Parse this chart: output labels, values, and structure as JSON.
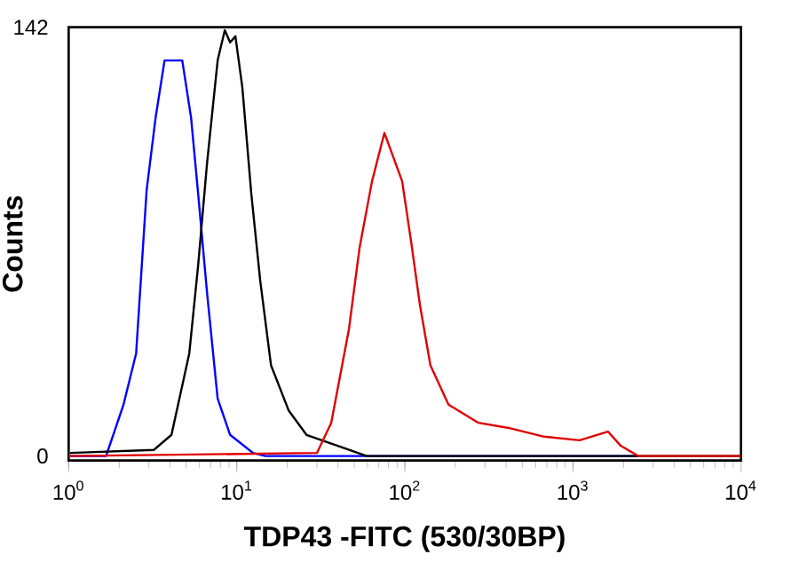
{
  "chart_data": {
    "type": "line",
    "xlabel": "TDP43 -FITC (530/30BP)",
    "ylabel": "Counts",
    "log": "x",
    "grid": false,
    "legend": false,
    "marker": "none",
    "line_style": "solid",
    "xlim": [
      1,
      10000
    ],
    "ylim": [
      -1.5,
      142
    ],
    "xticks": [
      {
        "value": 1,
        "label": "10$^{0}$"
      },
      {
        "value": 10,
        "label": "10$^{1}$"
      },
      {
        "value": 100,
        "label": "10$^{2}$"
      },
      {
        "value": 1000,
        "label": "10$^{3}$"
      },
      {
        "value": 10000,
        "label": "10$^{4}$"
      }
    ],
    "yticks": [
      0,
      142
    ],
    "series": [
      {
        "color": "#0000ff",
        "x": [
          1.02,
          1.67,
          2.12,
          2.52,
          2.91,
          3.29,
          3.72,
          4.2,
          4.74,
          5.35,
          5.89,
          6.66,
          7.7,
          9.13,
          12.5,
          14.8,
          2400
        ],
        "values": [
          0,
          0,
          17,
          34,
          88,
          112,
          131,
          131,
          131,
          112,
          87,
          54,
          19,
          7,
          1,
          0,
          0
        ]
      },
      {
        "color": "#000000",
        "x": [
          1.02,
          3.21,
          4.09,
          5.22,
          5.89,
          6.66,
          7.16,
          7.7,
          8.49,
          9.13,
          9.82,
          10.8,
          12.2,
          13.8,
          16.0,
          20.4,
          26.0,
          39.2,
          59.3,
          10000
        ],
        "values": [
          1,
          2,
          7,
          34,
          63,
          97,
          114,
          131,
          141,
          137,
          139,
          122,
          87,
          58,
          30,
          15,
          7,
          3.5,
          0,
          0
        ]
      },
      {
        "color": "#e00000",
        "x": [
          1.02,
          30,
          36.5,
          46.5,
          53.8,
          63.8,
          75.6,
          96.4,
          109,
          123,
          142,
          182,
          274,
          414,
          674,
          1096,
          1616,
          1915,
          2443,
          10000
        ],
        "values": [
          0,
          1,
          11,
          42,
          69,
          91,
          107,
          91,
          71,
          50,
          30,
          17,
          11,
          9.3,
          6.4,
          5.2,
          8.1,
          3.5,
          0,
          0
        ]
      }
    ]
  }
}
